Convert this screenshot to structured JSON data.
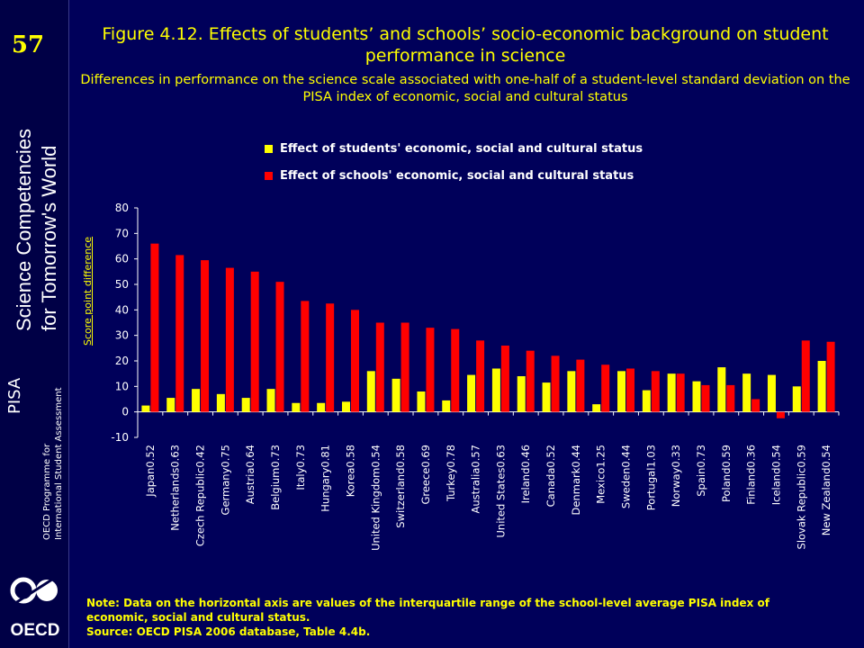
{
  "slide": {
    "page_number": "57",
    "sidebar_brand": "PISA",
    "sidebar_tagline_1": "Science Competencies",
    "sidebar_tagline_2": "for Tomorrow's World",
    "sidebar_org_1": "OECD Programme for",
    "sidebar_org_2": "International Student Assessment",
    "logo_text": "OECD",
    "title": "Figure 4.12. Effects of students’ and schools’ socio-economic background on student performance in science",
    "subtitle": "Differences in performance on the science scale associated with one-half of a student-level standard deviation on the PISA index of economic, social and cultural status",
    "note_line1": "Note: Data on the horizontal axis are values of the interquartile range of the school-level average  PISA index of economic, social and cultural status.",
    "note_line2": "Source: OECD PISA 2006 database, Table 4.4b."
  },
  "colors": {
    "background": "#00005a",
    "students": "#ffff00",
    "schools": "#ff0000",
    "text_yellow": "#ffff00"
  },
  "chart_data": {
    "type": "bar",
    "title": "",
    "ylabel": "Score point difference",
    "xlabel": "",
    "ylim": [
      -10,
      80
    ],
    "yticks": [
      -10,
      0,
      10,
      20,
      30,
      40,
      50,
      60,
      70,
      80
    ],
    "grid": false,
    "legend_position": "top",
    "categories": [
      "Japan0.52",
      "Netherlands0.63",
      "Czech Republic0.42",
      "Germany0.75",
      "Austria0.64",
      "Belgium0.73",
      "Italy0.73",
      "Hungary0.81",
      "Korea0.58",
      "United Kingdom0.54",
      "Switzerland0.58",
      "Greece0.69",
      "Turkey0.78",
      "Australia0.57",
      "United States0.63",
      "Ireland0.46",
      "Canada0.52",
      "Denmark0.44",
      "Mexico1.25",
      "Sweden0.44",
      "Portugal1.03",
      "Norway0.33",
      "Spain0.73",
      "Poland0.59",
      "Finland0.36",
      "Iceland0.54",
      "Slovak Republic0.59",
      "New Zealand0.54"
    ],
    "series": [
      {
        "name": "Effect of students' economic, social and cultural status",
        "values": [
          2.5,
          5.5,
          9,
          7,
          5.5,
          9,
          3.5,
          3.5,
          4,
          16,
          13,
          8,
          4.5,
          14.5,
          17,
          14,
          11.5,
          16,
          3,
          16,
          8.5,
          15,
          12,
          17.5,
          15,
          14.5,
          10,
          20
        ]
      },
      {
        "name": "Effect of schools' economic, social and cultural status",
        "values": [
          66,
          61.5,
          59.5,
          56.5,
          55,
          51,
          43.5,
          42.5,
          40,
          35,
          35,
          33,
          32.5,
          28,
          26,
          24,
          22,
          20.5,
          18.5,
          17,
          16,
          15,
          10.5,
          10.5,
          5,
          -2.5,
          28,
          27.5
        ]
      }
    ]
  }
}
